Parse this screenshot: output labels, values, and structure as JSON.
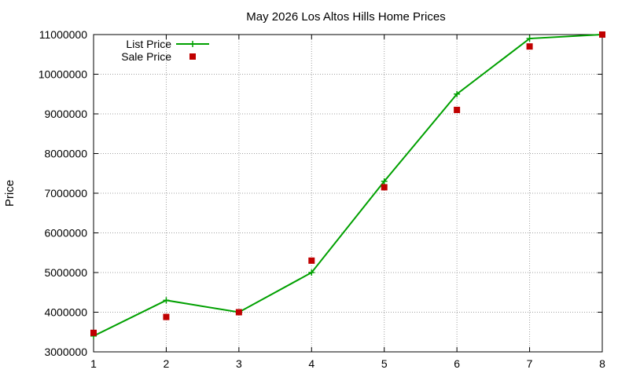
{
  "chart_data": {
    "type": "line",
    "title": "May 2026 Los Altos Hills Home Prices",
    "xlabel": "",
    "ylabel": "Price",
    "x": [
      1,
      2,
      3,
      4,
      5,
      6,
      7,
      8
    ],
    "xlim": [
      1,
      8
    ],
    "ylim": [
      3000000,
      11000000
    ],
    "xticks": [
      "1",
      "2",
      "3",
      "4",
      "5",
      "6",
      "7",
      "8"
    ],
    "yticks": [
      "3000000",
      "4000000",
      "5000000",
      "6000000",
      "7000000",
      "8000000",
      "9000000",
      "10000000",
      "11000000"
    ],
    "grid": true,
    "legend_position": "top-left",
    "series": [
      {
        "name": "List Price",
        "style": "line-with-plus-markers",
        "color": "#00a000",
        "values": [
          3400000,
          4300000,
          4000000,
          5000000,
          7300000,
          9500000,
          10900000,
          11000000
        ]
      },
      {
        "name": "Sale Price",
        "style": "square-markers",
        "color": "#c00000",
        "values": [
          3480000,
          3880000,
          4000000,
          5300000,
          7150000,
          9100000,
          10700000,
          11000000
        ]
      }
    ]
  }
}
